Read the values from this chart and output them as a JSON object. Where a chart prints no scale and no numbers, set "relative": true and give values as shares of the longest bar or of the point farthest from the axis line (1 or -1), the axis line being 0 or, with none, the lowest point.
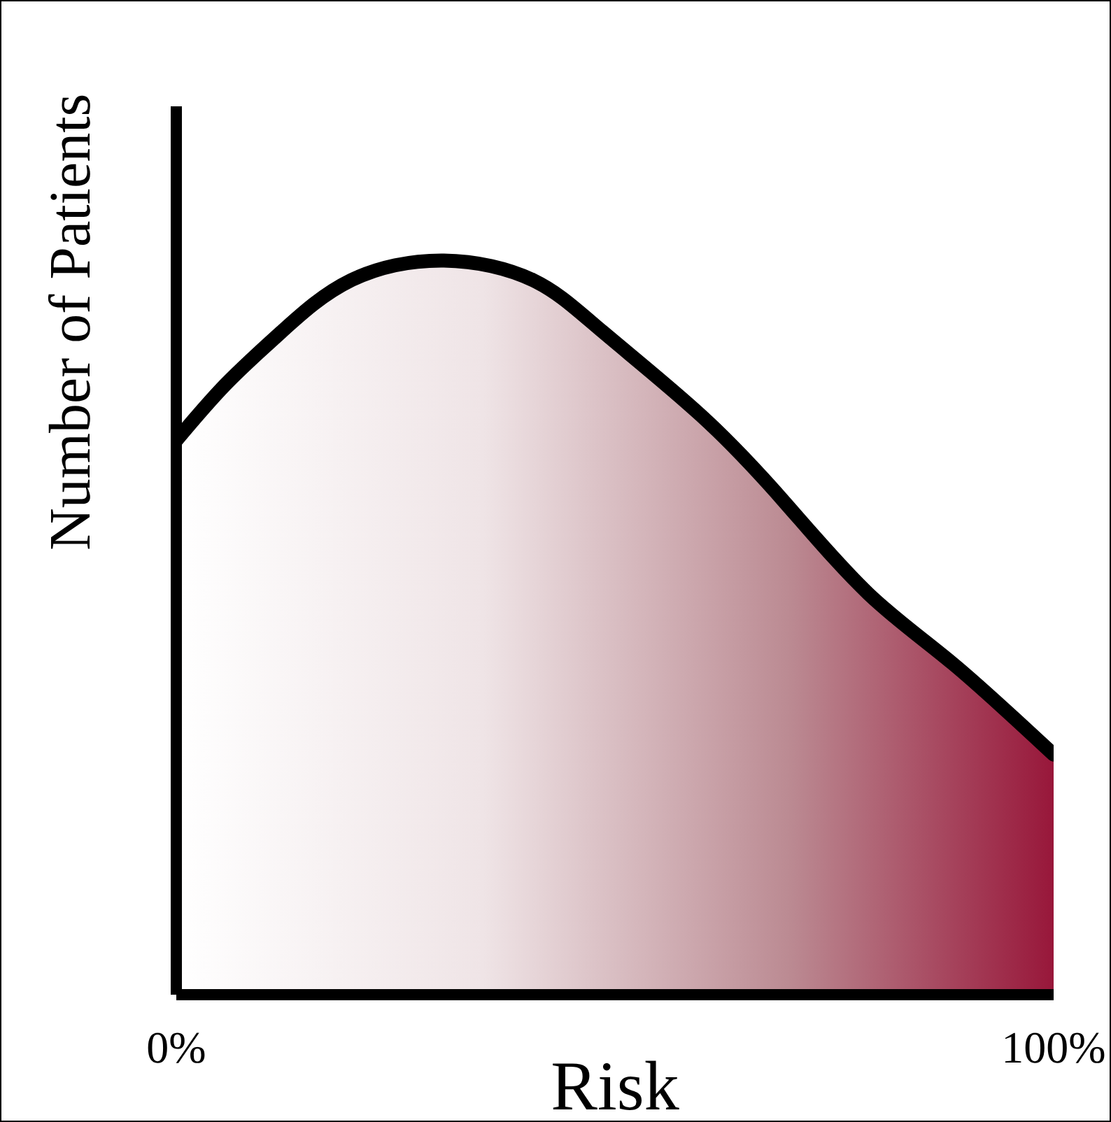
{
  "chart_data": {
    "type": "area",
    "xlabel": "Risk",
    "ylabel": "Number of Patients",
    "relative": true,
    "x": [
      0,
      5.6,
      12,
      19.9,
      30.5,
      40.7,
      48.6,
      59.8,
      69.4,
      78.9,
      88.5,
      100
    ],
    "series": [
      {
        "color": "#000000",
        "values": [
          0.755,
          0.831,
          0.903,
          0.973,
          1,
          0.973,
          0.903,
          0.789,
          0.67,
          0.546,
          0.451,
          0.327
        ]
      }
    ],
    "xlim": [
      0,
      100
    ],
    "xticks": [
      {
        "value": 0,
        "label": "0%"
      },
      {
        "value": 100,
        "label": "100%"
      }
    ]
  }
}
